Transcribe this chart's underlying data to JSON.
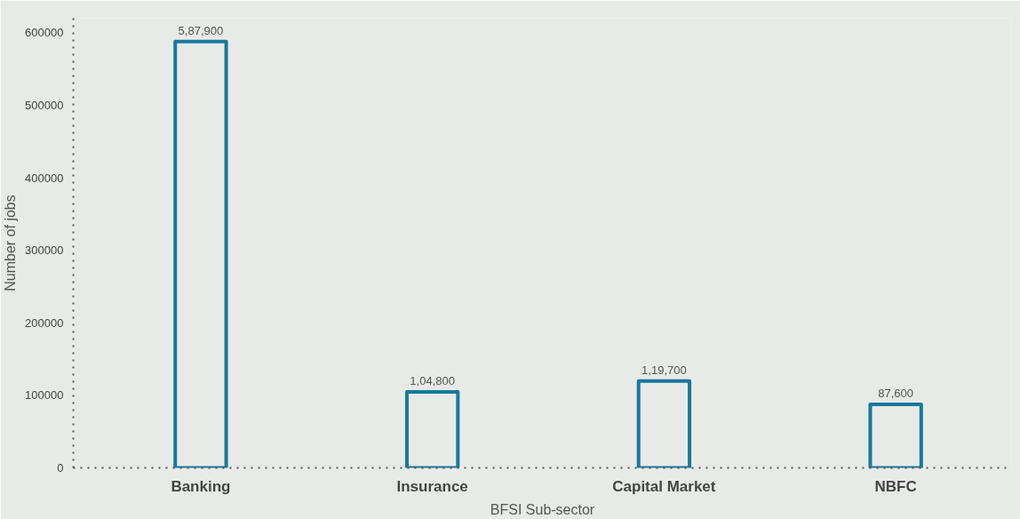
{
  "chart_data": {
    "type": "bar",
    "xlabel": "BFSI Sub-sector",
    "ylabel": "Number of jobs",
    "categories": [
      "Banking",
      "Insurance",
      "Capital Market",
      "NBFC"
    ],
    "values": [
      587900,
      104800,
      119700,
      87600
    ],
    "value_labels": [
      "5,87,900",
      "1,04,800",
      "1,19,700",
      "87,600"
    ],
    "color": "#17799b",
    "ylim": [
      0,
      620000
    ],
    "yticks": [
      0,
      100000,
      200000,
      300000,
      400000,
      500000,
      600000
    ]
  }
}
